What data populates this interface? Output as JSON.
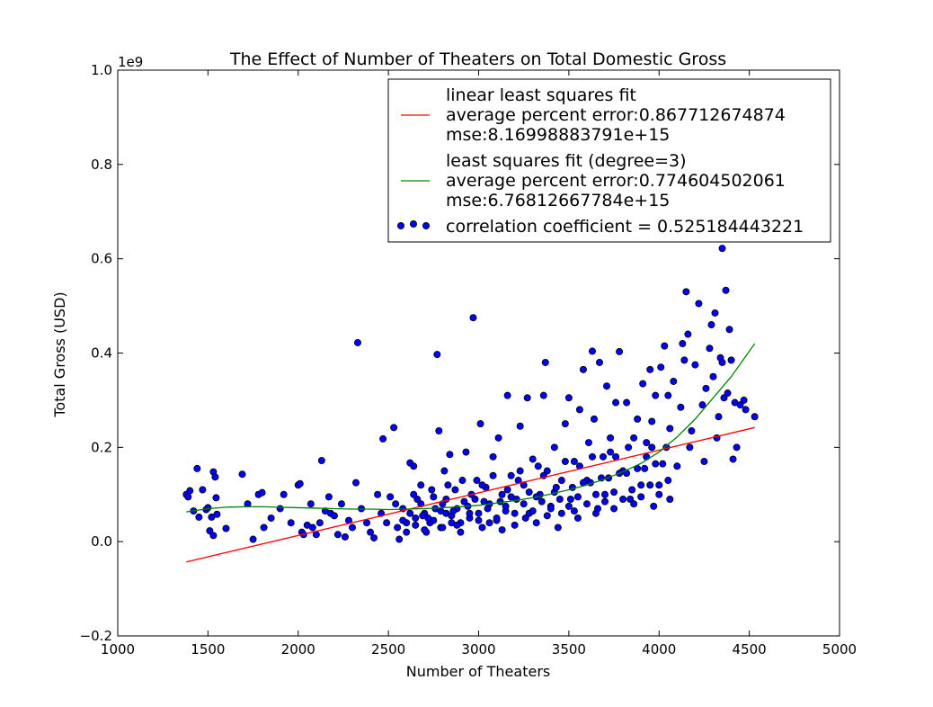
{
  "chart_data": {
    "type": "scatter",
    "title": "The Effect of Number of Theaters on Total Domestic Gross",
    "xlabel": "Number of Theaters",
    "ylabel": "Total Gross (USD)",
    "y_offset_label": "1e9",
    "xlim": [
      1000,
      5000
    ],
    "ylim": [
      -0.2,
      1.0
    ],
    "x_ticks": [
      1000,
      1500,
      2000,
      2500,
      3000,
      3500,
      4000,
      4500,
      5000
    ],
    "y_ticks": [
      -0.2,
      0.0,
      0.2,
      0.4,
      0.6,
      0.8,
      1.0
    ],
    "x_tick_labels": [
      "1000",
      "1500",
      "2000",
      "2500",
      "3000",
      "3500",
      "4000",
      "4500",
      "5000"
    ],
    "y_tick_labels": [
      "−0.2",
      "0.0",
      "0.2",
      "0.4",
      "0.6",
      "0.8",
      "1.0"
    ],
    "grid": false,
    "legend_position": "top-right",
    "series": [
      {
        "kind": "line",
        "color": "#ff0000",
        "legend_lines": [
          "linear least squares fit",
          "average percent error:0.867712674874",
          "mse:8.16998883791e+15"
        ],
        "x": [
          1380,
          4530
        ],
        "y": [
          -0.043,
          0.242
        ]
      },
      {
        "kind": "line",
        "color": "#008000",
        "legend_lines": [
          "least squares fit (degree=3)",
          "average percent error:0.774604502061",
          "mse:6.76812667784e+15"
        ],
        "x": [
          1380,
          1500,
          1600,
          1700,
          1800,
          1900,
          2000,
          2100,
          2200,
          2300,
          2400,
          2500,
          2600,
          2700,
          2800,
          2900,
          3000,
          3100,
          3200,
          3300,
          3400,
          3500,
          3600,
          3700,
          3800,
          3900,
          4000,
          4100,
          4200,
          4300,
          4400,
          4530
        ],
        "y": [
          0.063,
          0.07,
          0.073,
          0.074,
          0.074,
          0.073,
          0.072,
          0.071,
          0.07,
          0.069,
          0.069,
          0.068,
          0.069,
          0.07,
          0.072,
          0.074,
          0.077,
          0.082,
          0.087,
          0.093,
          0.101,
          0.11,
          0.12,
          0.133,
          0.148,
          0.166,
          0.19,
          0.222,
          0.26,
          0.305,
          0.35,
          0.42
        ]
      },
      {
        "kind": "scatter",
        "color": "#0000ff",
        "legend_lines": [
          "correlation coefficient = 0.525184443221"
        ],
        "points": [
          [
            1380,
            0.1
          ],
          [
            1390,
            0.095
          ],
          [
            1400,
            0.108
          ],
          [
            1420,
            0.065
          ],
          [
            1440,
            0.155
          ],
          [
            1450,
            0.052
          ],
          [
            1470,
            0.11
          ],
          [
            1490,
            0.068
          ],
          [
            1500,
            0.072
          ],
          [
            1510,
            0.023
          ],
          [
            1520,
            0.052
          ],
          [
            1530,
            0.148
          ],
          [
            1540,
            0.137
          ],
          [
            1545,
            0.093
          ],
          [
            1530,
            0.013
          ],
          [
            1550,
            0.058
          ],
          [
            1600,
            0.028
          ],
          [
            1690,
            0.143
          ],
          [
            1720,
            0.08
          ],
          [
            1750,
            0.005
          ],
          [
            1780,
            0.1
          ],
          [
            1800,
            0.104
          ],
          [
            1810,
            0.03
          ],
          [
            1850,
            0.05
          ],
          [
            1900,
            0.07
          ],
          [
            1920,
            0.1
          ],
          [
            1960,
            0.04
          ],
          [
            2000,
            0.12
          ],
          [
            2010,
            0.123
          ],
          [
            2020,
            0.02
          ],
          [
            2030,
            0.015
          ],
          [
            2050,
            0.035
          ],
          [
            2070,
            0.08
          ],
          [
            2080,
            0.03
          ],
          [
            2100,
            0.015
          ],
          [
            2120,
            0.04
          ],
          [
            2130,
            0.172
          ],
          [
            2150,
            0.065
          ],
          [
            2170,
            0.095
          ],
          [
            2180,
            0.06
          ],
          [
            2200,
            0.055
          ],
          [
            2220,
            0.015
          ],
          [
            2240,
            0.08
          ],
          [
            2260,
            0.01
          ],
          [
            2280,
            0.045
          ],
          [
            2300,
            0.03
          ],
          [
            2320,
            0.125
          ],
          [
            2330,
            0.422
          ],
          [
            2350,
            0.07
          ],
          [
            2380,
            0.04
          ],
          [
            2400,
            0.02
          ],
          [
            2420,
            0.008
          ],
          [
            2440,
            0.1
          ],
          [
            2460,
            0.06
          ],
          [
            2470,
            0.218
          ],
          [
            2490,
            0.04
          ],
          [
            2510,
            0.095
          ],
          [
            2530,
            0.242
          ],
          [
            2550,
            0.03
          ],
          [
            2560,
            0.005
          ],
          [
            2580,
            0.07
          ],
          [
            2600,
            0.04
          ],
          [
            2620,
            0.167
          ],
          [
            2640,
            0.16
          ],
          [
            2650,
            0.05
          ],
          [
            2660,
            0.09
          ],
          [
            2680,
            0.12
          ],
          [
            2700,
            0.06
          ],
          [
            2710,
            0.02
          ],
          [
            2730,
            0.04
          ],
          [
            2750,
            0.095
          ],
          [
            2770,
            0.397
          ],
          [
            2780,
            0.235
          ],
          [
            2790,
            0.03
          ],
          [
            2800,
            0.08
          ],
          [
            2810,
            0.15
          ],
          [
            2820,
            0.06
          ],
          [
            2840,
            0.185
          ],
          [
            2850,
            0.04
          ],
          [
            2870,
            0.11
          ],
          [
            2880,
            0.07
          ],
          [
            2900,
            0.02
          ],
          [
            2910,
            0.13
          ],
          [
            2930,
            0.19
          ],
          [
            2950,
            0.05
          ],
          [
            2970,
            0.475
          ],
          [
            2980,
            0.09
          ],
          [
            3000,
            0.06
          ],
          [
            3010,
            0.25
          ],
          [
            3020,
            0.03
          ],
          [
            3040,
            0.115
          ],
          [
            3060,
            0.08
          ],
          [
            3080,
            0.18
          ],
          [
            3100,
            0.045
          ],
          [
            3110,
            0.22
          ],
          [
            3130,
            0.1
          ],
          [
            3150,
            0.065
          ],
          [
            3160,
            0.31
          ],
          [
            3180,
            0.14
          ],
          [
            3200,
            0.035
          ],
          [
            3210,
            0.09
          ],
          [
            3230,
            0.245
          ],
          [
            3250,
            0.12
          ],
          [
            3270,
            0.305
          ],
          [
            3280,
            0.06
          ],
          [
            3300,
            0.175
          ],
          [
            3320,
            0.04
          ],
          [
            3340,
            0.1
          ],
          [
            3360,
            0.31
          ],
          [
            3370,
            0.38
          ],
          [
            3380,
            0.15
          ],
          [
            3400,
            0.075
          ],
          [
            3420,
            0.2
          ],
          [
            3440,
            0.03
          ],
          [
            3460,
            0.13
          ],
          [
            3480,
            0.25
          ],
          [
            3500,
            0.305
          ],
          [
            3510,
            0.09
          ],
          [
            3530,
            0.17
          ],
          [
            3550,
            0.05
          ],
          [
            3560,
            0.28
          ],
          [
            3580,
            0.365
          ],
          [
            3600,
            0.13
          ],
          [
            3610,
            0.21
          ],
          [
            3630,
            0.404
          ],
          [
            3640,
            0.26
          ],
          [
            3650,
            0.06
          ],
          [
            3670,
            0.38
          ],
          [
            3690,
            0.18
          ],
          [
            3700,
            0.1
          ],
          [
            3710,
            0.33
          ],
          [
            3730,
            0.22
          ],
          [
            3750,
            0.07
          ],
          [
            3760,
            0.295
          ],
          [
            3780,
            0.403
          ],
          [
            3800,
            0.15
          ],
          [
            3820,
            0.295
          ],
          [
            3840,
            0.09
          ],
          [
            3860,
            0.22
          ],
          [
            3880,
            0.26
          ],
          [
            3900,
            0.12
          ],
          [
            3910,
            0.335
          ],
          [
            3930,
            0.18
          ],
          [
            3950,
            0.365
          ],
          [
            3960,
            0.255
          ],
          [
            3970,
            0.075
          ],
          [
            3980,
            0.31
          ],
          [
            4000,
            0.12
          ],
          [
            4010,
            0.37
          ],
          [
            4030,
            0.415
          ],
          [
            4040,
            0.2
          ],
          [
            4050,
            0.31
          ],
          [
            4060,
            0.09
          ],
          [
            4080,
            0.34
          ],
          [
            4100,
            0.16
          ],
          [
            4120,
            0.285
          ],
          [
            4130,
            0.42
          ],
          [
            4140,
            0.385
          ],
          [
            4150,
            0.53
          ],
          [
            4160,
            0.44
          ],
          [
            4170,
            0.2
          ],
          [
            4180,
            0.235
          ],
          [
            4200,
            0.375
          ],
          [
            4220,
            0.505
          ],
          [
            4240,
            0.29
          ],
          [
            4250,
            0.17
          ],
          [
            4260,
            0.325
          ],
          [
            4280,
            0.41
          ],
          [
            4290,
            0.46
          ],
          [
            4300,
            0.35
          ],
          [
            4310,
            0.485
          ],
          [
            4320,
            0.22
          ],
          [
            4330,
            0.265
          ],
          [
            4340,
            0.39
          ],
          [
            4350,
            0.622
          ],
          [
            4360,
            0.305
          ],
          [
            4370,
            0.533
          ],
          [
            4380,
            0.315
          ],
          [
            4390,
            0.45
          ],
          [
            4400,
            0.385
          ],
          [
            4410,
            0.175
          ],
          [
            4420,
            0.295
          ],
          [
            4430,
            0.2
          ],
          [
            4450,
            0.29
          ],
          [
            4470,
            0.3
          ],
          [
            4480,
            0.28
          ],
          [
            4530,
            0.265
          ],
          [
            4350,
            0.38
          ],
          [
            2600,
            0.02
          ],
          [
            2650,
            0.035
          ],
          [
            2700,
            0.025
          ],
          [
            2750,
            0.045
          ],
          [
            2800,
            0.03
          ],
          [
            2850,
            0.055
          ],
          [
            2900,
            0.04
          ],
          [
            2950,
            0.06
          ],
          [
            3000,
            0.045
          ],
          [
            3050,
            0.07
          ],
          [
            3100,
            0.05
          ],
          [
            3150,
            0.075
          ],
          [
            3200,
            0.06
          ],
          [
            3250,
            0.08
          ],
          [
            3300,
            0.065
          ],
          [
            3350,
            0.085
          ],
          [
            3400,
            0.07
          ],
          [
            3450,
            0.09
          ],
          [
            3500,
            0.075
          ],
          [
            3550,
            0.095
          ],
          [
            3600,
            0.08
          ],
          [
            3650,
            0.1
          ],
          [
            3700,
            0.085
          ],
          [
            3750,
            0.105
          ],
          [
            3800,
            0.09
          ],
          [
            3850,
            0.11
          ],
          [
            3900,
            0.095
          ],
          [
            3950,
            0.12
          ],
          [
            4000,
            0.1
          ],
          [
            4050,
            0.13
          ],
          [
            2620,
            0.06
          ],
          [
            2680,
            0.08
          ],
          [
            2720,
            0.05
          ],
          [
            2760,
            0.07
          ],
          [
            2820,
            0.09
          ],
          [
            2860,
            0.065
          ],
          [
            2920,
            0.085
          ],
          [
            2960,
            0.1
          ],
          [
            3020,
            0.12
          ],
          [
            3060,
            0.04
          ],
          [
            3120,
            0.085
          ],
          [
            3160,
            0.11
          ],
          [
            3220,
            0.13
          ],
          [
            3260,
            0.05
          ],
          [
            3320,
            0.095
          ],
          [
            3360,
            0.14
          ],
          [
            3420,
            0.105
          ],
          [
            3460,
            0.06
          ],
          [
            3520,
            0.115
          ],
          [
            3560,
            0.16
          ],
          [
            3620,
            0.125
          ],
          [
            3660,
            0.07
          ],
          [
            3720,
            0.135
          ],
          [
            3760,
            0.18
          ],
          [
            3820,
            0.145
          ],
          [
            3860,
            0.08
          ],
          [
            3920,
            0.155
          ],
          [
            3960,
            0.2
          ],
          [
            4020,
            0.165
          ],
          [
            4060,
            0.24
          ],
          [
            2540,
            0.08
          ],
          [
            2580,
            0.045
          ],
          [
            2640,
            0.1
          ],
          [
            2690,
            0.055
          ],
          [
            2740,
            0.11
          ],
          [
            2790,
            0.065
          ],
          [
            2830,
            0.12
          ],
          [
            2880,
            0.035
          ],
          [
            2940,
            0.075
          ],
          [
            2990,
            0.13
          ],
          [
            3030,
            0.085
          ],
          [
            3080,
            0.14
          ],
          [
            3130,
            0.025
          ],
          [
            3180,
            0.095
          ],
          [
            3230,
            0.15
          ],
          [
            3280,
            0.105
          ],
          [
            3330,
            0.16
          ],
          [
            3380,
            0.055
          ],
          [
            3430,
            0.115
          ],
          [
            3480,
            0.17
          ],
          [
            3530,
            0.065
          ],
          [
            3580,
            0.125
          ],
          [
            3630,
            0.18
          ],
          [
            3680,
            0.135
          ],
          [
            3730,
            0.19
          ],
          [
            3780,
            0.145
          ],
          [
            3830,
            0.2
          ],
          [
            3880,
            0.155
          ],
          [
            3930,
            0.21
          ],
          [
            3980,
            0.165
          ]
        ]
      }
    ]
  }
}
